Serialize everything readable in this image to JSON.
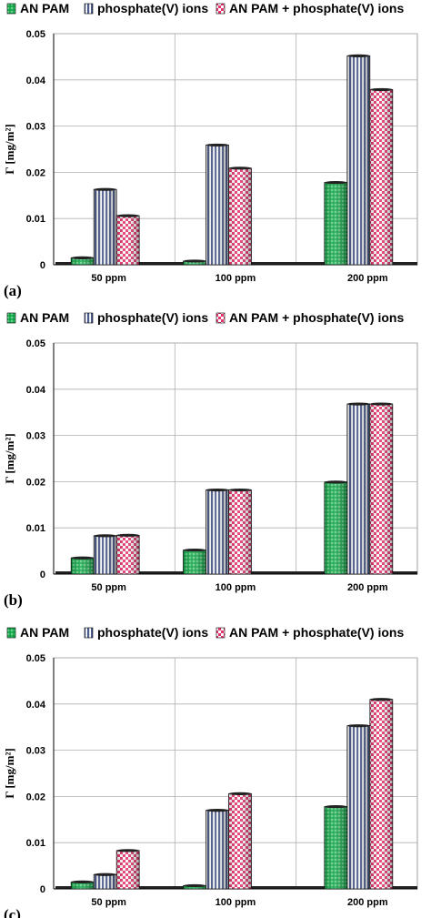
{
  "colors": {
    "an_pam": "#16a34a",
    "phosphate": "#4a5a8a",
    "combined": "#e8356e"
  },
  "chart_data": [
    {
      "type": "bar",
      "panel_label": "(a)",
      "categories": [
        "50 ppm",
        "100 ppm",
        "200 ppm"
      ],
      "series": [
        {
          "name": "AN PAM",
          "values": [
            0.0015,
            0.0008,
            0.0178
          ]
        },
        {
          "name": "phosphate(V) ions",
          "values": [
            0.0163,
            0.0259,
            0.0452
          ]
        },
        {
          "name": "AN PAM + phosphate(V) ions",
          "values": [
            0.0106,
            0.0209,
            0.0379
          ]
        }
      ],
      "ylabel": "Γ [mg/m²]",
      "ylim": [
        0,
        0.05
      ],
      "yticks": [
        "0",
        "0.01",
        "0.02",
        "0.03",
        "0.04",
        "0.05"
      ],
      "legend": "top",
      "grid": true
    },
    {
      "type": "bar",
      "panel_label": "(b)",
      "categories": [
        "50 ppm",
        "100 ppm",
        "200 ppm"
      ],
      "series": [
        {
          "name": "AN PAM",
          "values": [
            0.0035,
            0.0052,
            0.0199
          ]
        },
        {
          "name": "phosphate(V) ions",
          "values": [
            0.0083,
            0.0182,
            0.0368
          ]
        },
        {
          "name": "AN PAM + phosphate(V) ions",
          "values": [
            0.0084,
            0.0182,
            0.0368
          ]
        }
      ],
      "ylabel": "Γ [mg/m²]",
      "ylim": [
        0,
        0.05
      ],
      "yticks": [
        "0",
        "0.01",
        "0.02",
        "0.03",
        "0.04",
        "0.05"
      ],
      "legend": "top",
      "grid": true
    },
    {
      "type": "bar",
      "panel_label": "(c)",
      "categories": [
        "50 ppm",
        "100 ppm",
        "200 ppm"
      ],
      "series": [
        {
          "name": "AN PAM",
          "values": [
            0.0015,
            0.0007,
            0.0178
          ]
        },
        {
          "name": "phosphate(V) ions",
          "values": [
            0.0031,
            0.017,
            0.0353
          ]
        },
        {
          "name": "AN PAM + phosphate(V) ions",
          "values": [
            0.0083,
            0.0206,
            0.041
          ]
        }
      ],
      "ylabel": "Γ [mg/m²]",
      "ylim": [
        0,
        0.05
      ],
      "yticks": [
        "0",
        "0.01",
        "0.02",
        "0.03",
        "0.04",
        "0.05"
      ],
      "legend": "top",
      "grid": true
    }
  ]
}
